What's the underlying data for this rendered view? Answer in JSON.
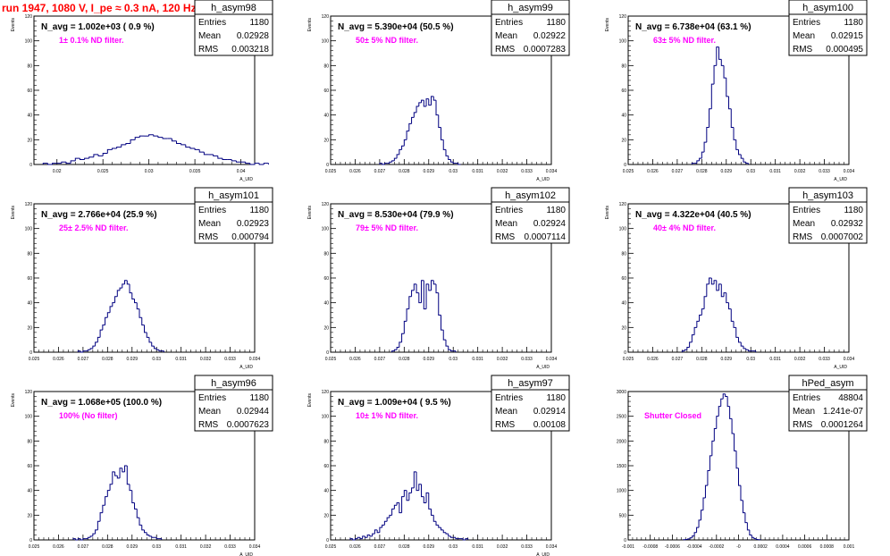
{
  "page_title": "run 1947,  1080 V, I_pe ≈ 0.3 nA, 120 Hz",
  "colors": {
    "title": "#ff0000",
    "histogram": "#000080",
    "note": "#ff00ff",
    "frame": "#000000"
  },
  "chart_data": [
    {
      "type": "histogram",
      "name": "h_asym98",
      "navg": "N_avg = 1.002e+03 ( 0.9 %)",
      "note": "1± 0.1% ND filter.",
      "stats": [
        [
          "Entries",
          "1180"
        ],
        [
          "Mean",
          "0.02928"
        ],
        [
          "RMS",
          "0.003218"
        ]
      ],
      "ylabel": "Events",
      "xlabel": "A_UID",
      "xlim": [
        0.0175,
        0.0415
      ],
      "ylim": [
        0,
        120
      ],
      "xticks": [
        {
          "v": 0.02,
          "t": "0.02"
        },
        {
          "v": 0.025,
          "t": "0.025"
        },
        {
          "v": 0.03,
          "t": "0.03"
        },
        {
          "v": 0.035,
          "t": "0.035"
        },
        {
          "v": 0.04,
          "t": "0.04"
        }
      ],
      "yticks": [
        0,
        20,
        40,
        60,
        80,
        100,
        120
      ],
      "bin_start": 0.0185,
      "bin_width": 0.0005,
      "values": [
        1,
        0,
        1,
        1,
        2,
        1,
        3,
        5,
        4,
        5,
        6,
        8,
        7,
        9,
        12,
        13,
        14,
        16,
        17,
        20,
        22,
        23,
        23,
        24,
        23,
        22,
        21,
        21,
        19,
        17,
        16,
        14,
        13,
        12,
        10,
        8,
        8,
        7,
        5,
        4,
        4,
        3,
        2,
        2,
        1,
        0,
        1,
        0,
        1
      ]
    },
    {
      "type": "histogram",
      "name": "h_asym99",
      "navg": "N_avg = 5.390e+04 (50.5 %)",
      "note": "50± 5% ND filter.",
      "stats": [
        [
          "Entries",
          "1180"
        ],
        [
          "Mean",
          "0.02922"
        ],
        [
          "RMS",
          "0.0007283"
        ]
      ],
      "ylabel": "Events",
      "xlabel": "A_UID",
      "xlim": [
        0.025,
        0.034
      ],
      "ylim": [
        0,
        120
      ],
      "xticks": [
        {
          "v": 0.025,
          "t": "0.025"
        },
        {
          "v": 0.026,
          "t": "0.026"
        },
        {
          "v": 0.027,
          "t": "0.027"
        },
        {
          "v": 0.028,
          "t": "0.028"
        },
        {
          "v": 0.029,
          "t": "0.029"
        },
        {
          "v": 0.03,
          "t": "0.03"
        },
        {
          "v": 0.031,
          "t": "0.031"
        },
        {
          "v": 0.032,
          "t": "0.032"
        },
        {
          "v": 0.033,
          "t": "0.033"
        },
        {
          "v": 0.034,
          "t": "0.034"
        }
      ],
      "yticks": [
        0,
        20,
        40,
        60,
        80,
        100,
        120
      ],
      "bin_start": 0.027,
      "bin_width": 0.0001,
      "values": [
        1,
        0,
        1,
        1,
        2,
        3,
        5,
        8,
        12,
        15,
        20,
        27,
        33,
        38,
        42,
        47,
        50,
        52,
        47,
        53,
        48,
        55,
        52,
        40,
        30,
        20,
        12,
        7,
        4,
        2,
        1,
        1,
        0
      ]
    },
    {
      "type": "histogram",
      "name": "h_asym100",
      "navg": "N_avg = 6.738e+04 (63.1 %)",
      "note": "63± 5% ND filter.",
      "stats": [
        [
          "Entries",
          "1180"
        ],
        [
          "Mean",
          "0.02915"
        ],
        [
          "RMS",
          "0.000495"
        ]
      ],
      "ylabel": "Events",
      "xlabel": "A_UID",
      "xlim": [
        0.025,
        0.034
      ],
      "ylim": [
        0,
        120
      ],
      "xticks": [
        {
          "v": 0.025,
          "t": "0.025"
        },
        {
          "v": 0.026,
          "t": "0.026"
        },
        {
          "v": 0.027,
          "t": "0.027"
        },
        {
          "v": 0.028,
          "t": "0.028"
        },
        {
          "v": 0.029,
          "t": "0.029"
        },
        {
          "v": 0.03,
          "t": "0.03"
        },
        {
          "v": 0.031,
          "t": "0.031"
        },
        {
          "v": 0.032,
          "t": "0.032"
        },
        {
          "v": 0.033,
          "t": "0.033"
        },
        {
          "v": 0.034,
          "t": "0.034"
        }
      ],
      "yticks": [
        0,
        20,
        40,
        60,
        80,
        100,
        120
      ],
      "bin_start": 0.0276,
      "bin_width": 0.0001,
      "values": [
        1,
        1,
        3,
        5,
        10,
        18,
        30,
        45,
        65,
        80,
        95,
        85,
        80,
        70,
        55,
        45,
        30,
        20,
        12,
        8,
        5,
        2,
        1
      ]
    },
    {
      "type": "histogram",
      "name": "h_asym101",
      "navg": "N_avg = 2.766e+04 (25.9 %)",
      "note": "25± 2.5% ND filter.",
      "stats": [
        [
          "Entries",
          "1180"
        ],
        [
          "Mean",
          "0.02923"
        ],
        [
          "RMS",
          "0.000794"
        ]
      ],
      "ylabel": "Events",
      "xlabel": "A_UID",
      "xlim": [
        0.025,
        0.034
      ],
      "ylim": [
        0,
        120
      ],
      "xticks": [
        {
          "v": 0.025,
          "t": "0.025"
        },
        {
          "v": 0.026,
          "t": "0.026"
        },
        {
          "v": 0.027,
          "t": "0.027"
        },
        {
          "v": 0.028,
          "t": "0.028"
        },
        {
          "v": 0.029,
          "t": "0.029"
        },
        {
          "v": 0.03,
          "t": "0.03"
        },
        {
          "v": 0.031,
          "t": "0.031"
        },
        {
          "v": 0.032,
          "t": "0.032"
        },
        {
          "v": 0.033,
          "t": "0.033"
        },
        {
          "v": 0.034,
          "t": "0.034"
        }
      ],
      "yticks": [
        0,
        20,
        40,
        60,
        80,
        100,
        120
      ],
      "bin_start": 0.0268,
      "bin_width": 0.0001,
      "values": [
        1,
        0,
        1,
        1,
        2,
        3,
        5,
        8,
        12,
        18,
        22,
        28,
        32,
        37,
        40,
        45,
        50,
        52,
        55,
        58,
        55,
        48,
        43,
        40,
        35,
        28,
        22,
        16,
        12,
        8,
        5,
        3,
        2,
        1,
        1
      ]
    },
    {
      "type": "histogram",
      "name": "h_asym102",
      "navg": "N_avg = 8.530e+04 (79.9 %)",
      "note": "79± 5% ND filter.",
      "stats": [
        [
          "Entries",
          "1180"
        ],
        [
          "Mean",
          "0.02924"
        ],
        [
          "RMS",
          "0.0007114"
        ]
      ],
      "ylabel": "Events",
      "xlabel": "A_UID",
      "xlim": [
        0.025,
        0.034
      ],
      "ylim": [
        0,
        120
      ],
      "xticks": [
        {
          "v": 0.025,
          "t": "0.025"
        },
        {
          "v": 0.026,
          "t": "0.026"
        },
        {
          "v": 0.027,
          "t": "0.027"
        },
        {
          "v": 0.028,
          "t": "0.028"
        },
        {
          "v": 0.029,
          "t": "0.029"
        },
        {
          "v": 0.03,
          "t": "0.03"
        },
        {
          "v": 0.031,
          "t": "0.031"
        },
        {
          "v": 0.032,
          "t": "0.032"
        },
        {
          "v": 0.033,
          "t": "0.033"
        },
        {
          "v": 0.034,
          "t": "0.034"
        }
      ],
      "yticks": [
        0,
        20,
        40,
        60,
        80,
        100,
        120
      ],
      "bin_start": 0.0275,
      "bin_width": 0.0001,
      "values": [
        1,
        2,
        4,
        8,
        15,
        25,
        35,
        45,
        50,
        55,
        48,
        40,
        58,
        35,
        55,
        50,
        58,
        55,
        48,
        30,
        18,
        10,
        5,
        2,
        1,
        1
      ]
    },
    {
      "type": "histogram",
      "name": "h_asym103",
      "navg": "N_avg = 4.322e+04 (40.5 %)",
      "note": "40± 4% ND filter.",
      "stats": [
        [
          "Entries",
          "1180"
        ],
        [
          "Mean",
          "0.02932"
        ],
        [
          "RMS",
          "0.0007002"
        ]
      ],
      "ylabel": "Events",
      "xlabel": "A_UID",
      "xlim": [
        0.025,
        0.034
      ],
      "ylim": [
        0,
        120
      ],
      "xticks": [
        {
          "v": 0.025,
          "t": "0.025"
        },
        {
          "v": 0.026,
          "t": "0.026"
        },
        {
          "v": 0.027,
          "t": "0.027"
        },
        {
          "v": 0.028,
          "t": "0.028"
        },
        {
          "v": 0.029,
          "t": "0.029"
        },
        {
          "v": 0.03,
          "t": "0.03"
        },
        {
          "v": 0.031,
          "t": "0.031"
        },
        {
          "v": 0.032,
          "t": "0.032"
        },
        {
          "v": 0.033,
          "t": "0.033"
        },
        {
          "v": 0.034,
          "t": "0.034"
        }
      ],
      "yticks": [
        0,
        20,
        40,
        60,
        80,
        100,
        120
      ],
      "bin_start": 0.0272,
      "bin_width": 0.0001,
      "values": [
        1,
        2,
        4,
        8,
        14,
        20,
        25,
        30,
        35,
        45,
        55,
        60,
        55,
        58,
        50,
        55,
        45,
        48,
        40,
        35,
        25,
        20,
        12,
        8,
        5,
        3,
        2,
        1,
        1,
        1
      ]
    },
    {
      "type": "histogram",
      "name": "h_asym96",
      "navg": "N_avg = 1.068e+05 (100.0 %)",
      "note": "100% (No filter)",
      "stats": [
        [
          "Entries",
          "1180"
        ],
        [
          "Mean",
          "0.02944"
        ],
        [
          "RMS",
          "0.0007623"
        ]
      ],
      "ylabel": "Events",
      "xlabel": "A_UID",
      "xlim": [
        0.025,
        0.034
      ],
      "ylim": [
        0,
        120
      ],
      "xticks": [
        {
          "v": 0.025,
          "t": "0.025"
        },
        {
          "v": 0.026,
          "t": "0.026"
        },
        {
          "v": 0.027,
          "t": "0.027"
        },
        {
          "v": 0.028,
          "t": "0.028"
        },
        {
          "v": 0.029,
          "t": "0.029"
        },
        {
          "v": 0.03,
          "t": "0.03"
        },
        {
          "v": 0.031,
          "t": "0.031"
        },
        {
          "v": 0.032,
          "t": "0.032"
        },
        {
          "v": 0.033,
          "t": "0.033"
        },
        {
          "v": 0.034,
          "t": "0.034"
        }
      ],
      "yticks": [
        0,
        20,
        40,
        60,
        80,
        100,
        120
      ],
      "bin_start": 0.0266,
      "bin_width": 0.0001,
      "values": [
        1,
        0,
        1,
        0,
        1,
        1,
        2,
        3,
        5,
        8,
        15,
        22,
        28,
        35,
        40,
        45,
        55,
        52,
        50,
        58,
        55,
        60,
        45,
        40,
        30,
        25,
        18,
        12,
        8,
        6,
        4,
        3,
        2,
        2,
        1,
        1
      ]
    },
    {
      "type": "histogram",
      "name": "h_asym97",
      "navg": "N_avg = 1.009e+04 ( 9.5 %)",
      "note": "10± 1% ND filter.",
      "stats": [
        [
          "Entries",
          "1180"
        ],
        [
          "Mean",
          "0.02914"
        ],
        [
          "RMS",
          "0.00108"
        ]
      ],
      "ylabel": "Events",
      "xlabel": "A_UID",
      "xlim": [
        0.025,
        0.034
      ],
      "ylim": [
        0,
        120
      ],
      "xticks": [
        {
          "v": 0.025,
          "t": "0.025"
        },
        {
          "v": 0.026,
          "t": "0.026"
        },
        {
          "v": 0.027,
          "t": "0.027"
        },
        {
          "v": 0.028,
          "t": "0.028"
        },
        {
          "v": 0.029,
          "t": "0.029"
        },
        {
          "v": 0.03,
          "t": "0.03"
        },
        {
          "v": 0.031,
          "t": "0.031"
        },
        {
          "v": 0.032,
          "t": "0.032"
        },
        {
          "v": 0.033,
          "t": "0.033"
        },
        {
          "v": 0.034,
          "t": "0.034"
        }
      ],
      "yticks": [
        0,
        20,
        40,
        60,
        80,
        100,
        120
      ],
      "bin_start": 0.0258,
      "bin_width": 0.0001,
      "values": [
        1,
        0,
        1,
        2,
        1,
        3,
        2,
        4,
        3,
        5,
        8,
        6,
        10,
        12,
        15,
        18,
        20,
        25,
        28,
        30,
        22,
        35,
        40,
        32,
        38,
        42,
        55,
        40,
        45,
        35,
        30,
        38,
        25,
        20,
        15,
        12,
        10,
        8,
        6,
        5,
        3,
        2,
        2,
        1,
        1,
        1,
        0,
        1
      ]
    },
    {
      "type": "histogram",
      "name": "hPed_asym",
      "navg": "",
      "note": "Shutter Closed",
      "stats": [
        [
          "Entries",
          "48804"
        ],
        [
          "Mean",
          "1.241e-07"
        ],
        [
          "RMS",
          "0.0001264"
        ]
      ],
      "ylabel": "",
      "xlabel": "",
      "xlim": [
        -0.001,
        0.001
      ],
      "ylim": [
        0,
        3000
      ],
      "xticks": [
        {
          "v": -0.001,
          "t": "-0.001"
        },
        {
          "v": -0.0008,
          "t": "-0.0008"
        },
        {
          "v": -0.0006,
          "t": "-0.0006"
        },
        {
          "v": -0.0004,
          "t": "-0.0004"
        },
        {
          "v": -0.0002,
          "t": "-0.0002"
        },
        {
          "v": 0,
          "t": "-0"
        },
        {
          "v": 0.0002,
          "t": "0.0002"
        },
        {
          "v": 0.0004,
          "t": "0.0004"
        },
        {
          "v": 0.0006,
          "t": "0.0006"
        },
        {
          "v": 0.0008,
          "t": "0.0008"
        },
        {
          "v": 0.001,
          "t": "0.001"
        }
      ],
      "yticks": [
        0,
        500,
        1000,
        1500,
        2000,
        2500,
        3000
      ],
      "bin_start": -0.0005,
      "bin_width": 2e-05,
      "values": [
        5,
        10,
        20,
        40,
        80,
        150,
        250,
        400,
        600,
        850,
        1100,
        1400,
        1700,
        2000,
        2250,
        2500,
        2700,
        2850,
        2950,
        2900,
        2700,
        2450,
        2150,
        1800,
        1450,
        1100,
        800,
        550,
        350,
        200,
        100,
        50,
        25,
        10,
        5
      ]
    }
  ]
}
